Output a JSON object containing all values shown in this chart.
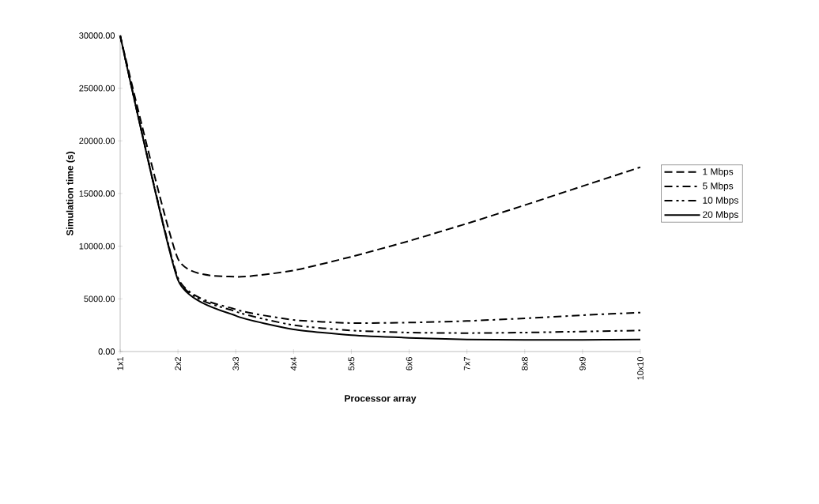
{
  "chart_data": {
    "type": "line",
    "xlabel": "Processor array",
    "ylabel": "Simulation time (s)",
    "categories": [
      "1x1",
      "2x2",
      "3x3",
      "4x4",
      "5x5",
      "6x6",
      "7x7",
      "8x8",
      "9x9",
      "10x10"
    ],
    "series": [
      {
        "name": "1 Mbps",
        "color": "#000000",
        "line_style": "dashed",
        "values": [
          30000,
          8800,
          7100,
          7700,
          9000,
          10500,
          12150,
          13900,
          15700,
          17500
        ]
      },
      {
        "name": "5 Mbps",
        "color": "#000000",
        "line_style": "dashdot",
        "values": [
          30000,
          7000,
          4000,
          3000,
          2700,
          2750,
          2900,
          3150,
          3450,
          3700
        ]
      },
      {
        "name": "10 Mbps",
        "color": "#000000",
        "line_style": "dashdotdot",
        "values": [
          30000,
          6900,
          3800,
          2500,
          2000,
          1800,
          1750,
          1800,
          1900,
          2000
        ]
      },
      {
        "name": "20 Mbps",
        "color": "#000000",
        "line_style": "solid",
        "values": [
          30000,
          6800,
          3400,
          2100,
          1550,
          1300,
          1150,
          1100,
          1100,
          1150
        ]
      }
    ],
    "ylim": [
      0,
      30000
    ],
    "yticks": [
      {
        "value": 0,
        "label": "0.00"
      },
      {
        "value": 5000,
        "label": "5000.00"
      },
      {
        "value": 10000,
        "label": "10000.00"
      },
      {
        "value": 15000,
        "label": "15000.00"
      },
      {
        "value": 20000,
        "label": "20000.00"
      },
      {
        "value": 25000,
        "label": "25000.00"
      },
      {
        "value": 30000,
        "label": "30000.00"
      }
    ],
    "legend": "right",
    "grid": false,
    "marker": "none"
  }
}
